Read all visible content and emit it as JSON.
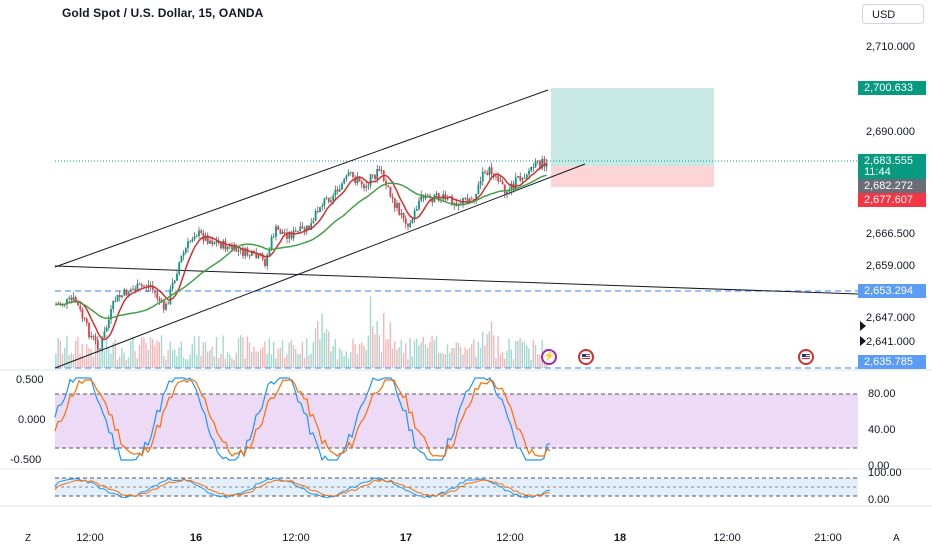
{
  "header": {
    "title": "Gold Spot / U.S. Dollar, 15, OANDA",
    "currency": "USD"
  },
  "price_axis": {
    "labels": [
      "2,710.000",
      "2,690.000",
      "2,666.500",
      "2,659.000",
      "2,647.000",
      "2,641.000"
    ]
  },
  "price_tags": {
    "target": {
      "value": "2,700.633",
      "color": "#089981"
    },
    "current": {
      "value": "2,683.555",
      "countdown": "11:44",
      "color": "#089981"
    },
    "entry": {
      "value": "2,682.272",
      "color": "#6a6d78"
    },
    "stop": {
      "value": "2,677.607",
      "color": "#f23645"
    },
    "support_high": {
      "value": "2,653.294",
      "color": "#5b9cf6"
    },
    "support_low": {
      "value": "2,635.785",
      "color": "#5b9cf6"
    }
  },
  "indicator1": {
    "left_labels": [
      "0.500",
      "0.000",
      "-0.500"
    ],
    "right_labels": [
      "80.00",
      "40.00",
      "0.00"
    ],
    "band_color": "#e1bee7"
  },
  "indicator2": {
    "right_labels": [
      "100.00",
      "0.00"
    ],
    "band_color": "#dbeafb"
  },
  "time_axis": {
    "labels": [
      {
        "text": "12:00",
        "bold": false
      },
      {
        "text": "16",
        "bold": true
      },
      {
        "text": "12:00",
        "bold": false
      },
      {
        "text": "17",
        "bold": true
      },
      {
        "text": "12:00",
        "bold": false
      },
      {
        "text": "18",
        "bold": true
      },
      {
        "text": "12:00",
        "bold": false
      },
      {
        "text": "21:00",
        "bold": false
      }
    ],
    "left_button": "Z",
    "right_button": "A"
  },
  "chart_data": {
    "type": "candlestick",
    "symbol": "Gold Spot / U.S. Dollar",
    "interval": "15",
    "source": "OANDA",
    "last_price": 2683.555,
    "position": {
      "target": 2700.633,
      "entry": 2682.272,
      "stop": 2677.607
    },
    "horizontal_levels": [
      2653.294,
      2635.785
    ],
    "colors": {
      "up": "#089981",
      "down": "#f23645",
      "ma_fast": "#d32f2f",
      "ma_slow": "#43a047"
    }
  }
}
